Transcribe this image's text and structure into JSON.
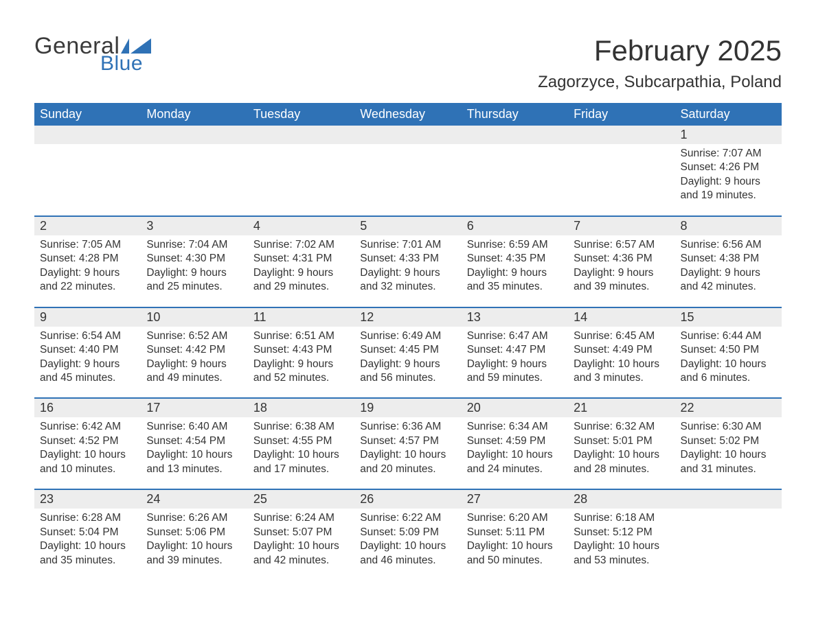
{
  "logo": {
    "word1": "General",
    "word2": "Blue"
  },
  "title": "February 2025",
  "location": "Zagorzyce, Subcarpathia, Poland",
  "colors": {
    "header_bg": "#2f72b6",
    "header_text": "#ffffff",
    "week_border": "#2f72b6",
    "daynum_bg": "#ededed",
    "body_text": "#333333",
    "logo_blue": "#2f72b6",
    "page_bg": "#ffffff"
  },
  "typography": {
    "title_fontsize": 42,
    "location_fontsize": 24,
    "weekday_fontsize": 18,
    "daynum_fontsize": 18,
    "body_fontsize": 15.5
  },
  "weekdays": [
    "Sunday",
    "Monday",
    "Tuesday",
    "Wednesday",
    "Thursday",
    "Friday",
    "Saturday"
  ],
  "weeks": [
    [
      null,
      null,
      null,
      null,
      null,
      null,
      {
        "n": "1",
        "sr": "Sunrise: 7:07 AM",
        "ss": "Sunset: 4:26 PM",
        "d1": "Daylight: 9 hours",
        "d2": "and 19 minutes."
      }
    ],
    [
      {
        "n": "2",
        "sr": "Sunrise: 7:05 AM",
        "ss": "Sunset: 4:28 PM",
        "d1": "Daylight: 9 hours",
        "d2": "and 22 minutes."
      },
      {
        "n": "3",
        "sr": "Sunrise: 7:04 AM",
        "ss": "Sunset: 4:30 PM",
        "d1": "Daylight: 9 hours",
        "d2": "and 25 minutes."
      },
      {
        "n": "4",
        "sr": "Sunrise: 7:02 AM",
        "ss": "Sunset: 4:31 PM",
        "d1": "Daylight: 9 hours",
        "d2": "and 29 minutes."
      },
      {
        "n": "5",
        "sr": "Sunrise: 7:01 AM",
        "ss": "Sunset: 4:33 PM",
        "d1": "Daylight: 9 hours",
        "d2": "and 32 minutes."
      },
      {
        "n": "6",
        "sr": "Sunrise: 6:59 AM",
        "ss": "Sunset: 4:35 PM",
        "d1": "Daylight: 9 hours",
        "d2": "and 35 minutes."
      },
      {
        "n": "7",
        "sr": "Sunrise: 6:57 AM",
        "ss": "Sunset: 4:36 PM",
        "d1": "Daylight: 9 hours",
        "d2": "and 39 minutes."
      },
      {
        "n": "8",
        "sr": "Sunrise: 6:56 AM",
        "ss": "Sunset: 4:38 PM",
        "d1": "Daylight: 9 hours",
        "d2": "and 42 minutes."
      }
    ],
    [
      {
        "n": "9",
        "sr": "Sunrise: 6:54 AM",
        "ss": "Sunset: 4:40 PM",
        "d1": "Daylight: 9 hours",
        "d2": "and 45 minutes."
      },
      {
        "n": "10",
        "sr": "Sunrise: 6:52 AM",
        "ss": "Sunset: 4:42 PM",
        "d1": "Daylight: 9 hours",
        "d2": "and 49 minutes."
      },
      {
        "n": "11",
        "sr": "Sunrise: 6:51 AM",
        "ss": "Sunset: 4:43 PM",
        "d1": "Daylight: 9 hours",
        "d2": "and 52 minutes."
      },
      {
        "n": "12",
        "sr": "Sunrise: 6:49 AM",
        "ss": "Sunset: 4:45 PM",
        "d1": "Daylight: 9 hours",
        "d2": "and 56 minutes."
      },
      {
        "n": "13",
        "sr": "Sunrise: 6:47 AM",
        "ss": "Sunset: 4:47 PM",
        "d1": "Daylight: 9 hours",
        "d2": "and 59 minutes."
      },
      {
        "n": "14",
        "sr": "Sunrise: 6:45 AM",
        "ss": "Sunset: 4:49 PM",
        "d1": "Daylight: 10 hours",
        "d2": "and 3 minutes."
      },
      {
        "n": "15",
        "sr": "Sunrise: 6:44 AM",
        "ss": "Sunset: 4:50 PM",
        "d1": "Daylight: 10 hours",
        "d2": "and 6 minutes."
      }
    ],
    [
      {
        "n": "16",
        "sr": "Sunrise: 6:42 AM",
        "ss": "Sunset: 4:52 PM",
        "d1": "Daylight: 10 hours",
        "d2": "and 10 minutes."
      },
      {
        "n": "17",
        "sr": "Sunrise: 6:40 AM",
        "ss": "Sunset: 4:54 PM",
        "d1": "Daylight: 10 hours",
        "d2": "and 13 minutes."
      },
      {
        "n": "18",
        "sr": "Sunrise: 6:38 AM",
        "ss": "Sunset: 4:55 PM",
        "d1": "Daylight: 10 hours",
        "d2": "and 17 minutes."
      },
      {
        "n": "19",
        "sr": "Sunrise: 6:36 AM",
        "ss": "Sunset: 4:57 PM",
        "d1": "Daylight: 10 hours",
        "d2": "and 20 minutes."
      },
      {
        "n": "20",
        "sr": "Sunrise: 6:34 AM",
        "ss": "Sunset: 4:59 PM",
        "d1": "Daylight: 10 hours",
        "d2": "and 24 minutes."
      },
      {
        "n": "21",
        "sr": "Sunrise: 6:32 AM",
        "ss": "Sunset: 5:01 PM",
        "d1": "Daylight: 10 hours",
        "d2": "and 28 minutes."
      },
      {
        "n": "22",
        "sr": "Sunrise: 6:30 AM",
        "ss": "Sunset: 5:02 PM",
        "d1": "Daylight: 10 hours",
        "d2": "and 31 minutes."
      }
    ],
    [
      {
        "n": "23",
        "sr": "Sunrise: 6:28 AM",
        "ss": "Sunset: 5:04 PM",
        "d1": "Daylight: 10 hours",
        "d2": "and 35 minutes."
      },
      {
        "n": "24",
        "sr": "Sunrise: 6:26 AM",
        "ss": "Sunset: 5:06 PM",
        "d1": "Daylight: 10 hours",
        "d2": "and 39 minutes."
      },
      {
        "n": "25",
        "sr": "Sunrise: 6:24 AM",
        "ss": "Sunset: 5:07 PM",
        "d1": "Daylight: 10 hours",
        "d2": "and 42 minutes."
      },
      {
        "n": "26",
        "sr": "Sunrise: 6:22 AM",
        "ss": "Sunset: 5:09 PM",
        "d1": "Daylight: 10 hours",
        "d2": "and 46 minutes."
      },
      {
        "n": "27",
        "sr": "Sunrise: 6:20 AM",
        "ss": "Sunset: 5:11 PM",
        "d1": "Daylight: 10 hours",
        "d2": "and 50 minutes."
      },
      {
        "n": "28",
        "sr": "Sunrise: 6:18 AM",
        "ss": "Sunset: 5:12 PM",
        "d1": "Daylight: 10 hours",
        "d2": "and 53 minutes."
      },
      null
    ]
  ]
}
